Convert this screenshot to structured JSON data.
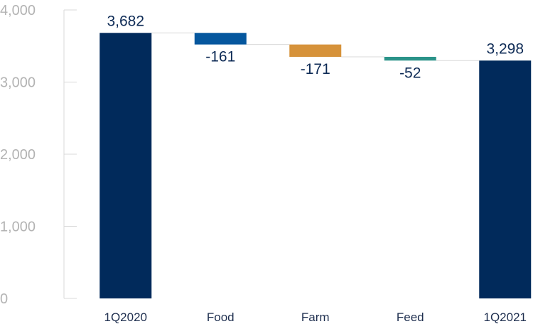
{
  "chart_data": {
    "type": "bar",
    "subtype": "waterfall",
    "title": "",
    "xlabel": "",
    "ylabel": "",
    "ylim": [
      0,
      4000
    ],
    "y_ticks": [
      {
        "value": 0,
        "label": "0"
      },
      {
        "value": 1000,
        "label": "1,000"
      },
      {
        "value": 2000,
        "label": "2,000"
      },
      {
        "value": 3000,
        "label": "3,000"
      },
      {
        "value": 4000,
        "label": "4,000"
      }
    ],
    "grid": false,
    "legend": "none",
    "categories": [
      "1Q2020",
      "Food",
      "Farm",
      "Feed",
      "1Q2021"
    ],
    "bars": [
      {
        "category": "1Q2020",
        "kind": "total",
        "value": 3682,
        "label": "3,682",
        "color": "#012a5b"
      },
      {
        "category": "Food",
        "kind": "delta",
        "value": -161,
        "label": "-161",
        "color": "#05579e"
      },
      {
        "category": "Farm",
        "kind": "delta",
        "value": -171,
        "label": "-171",
        "color": "#d6923a"
      },
      {
        "category": "Feed",
        "kind": "delta",
        "value": -52,
        "label": "-52",
        "color": "#2b9389"
      },
      {
        "category": "1Q2021",
        "kind": "total",
        "value": 3298,
        "label": "3,298",
        "color": "#012a5b"
      }
    ]
  }
}
